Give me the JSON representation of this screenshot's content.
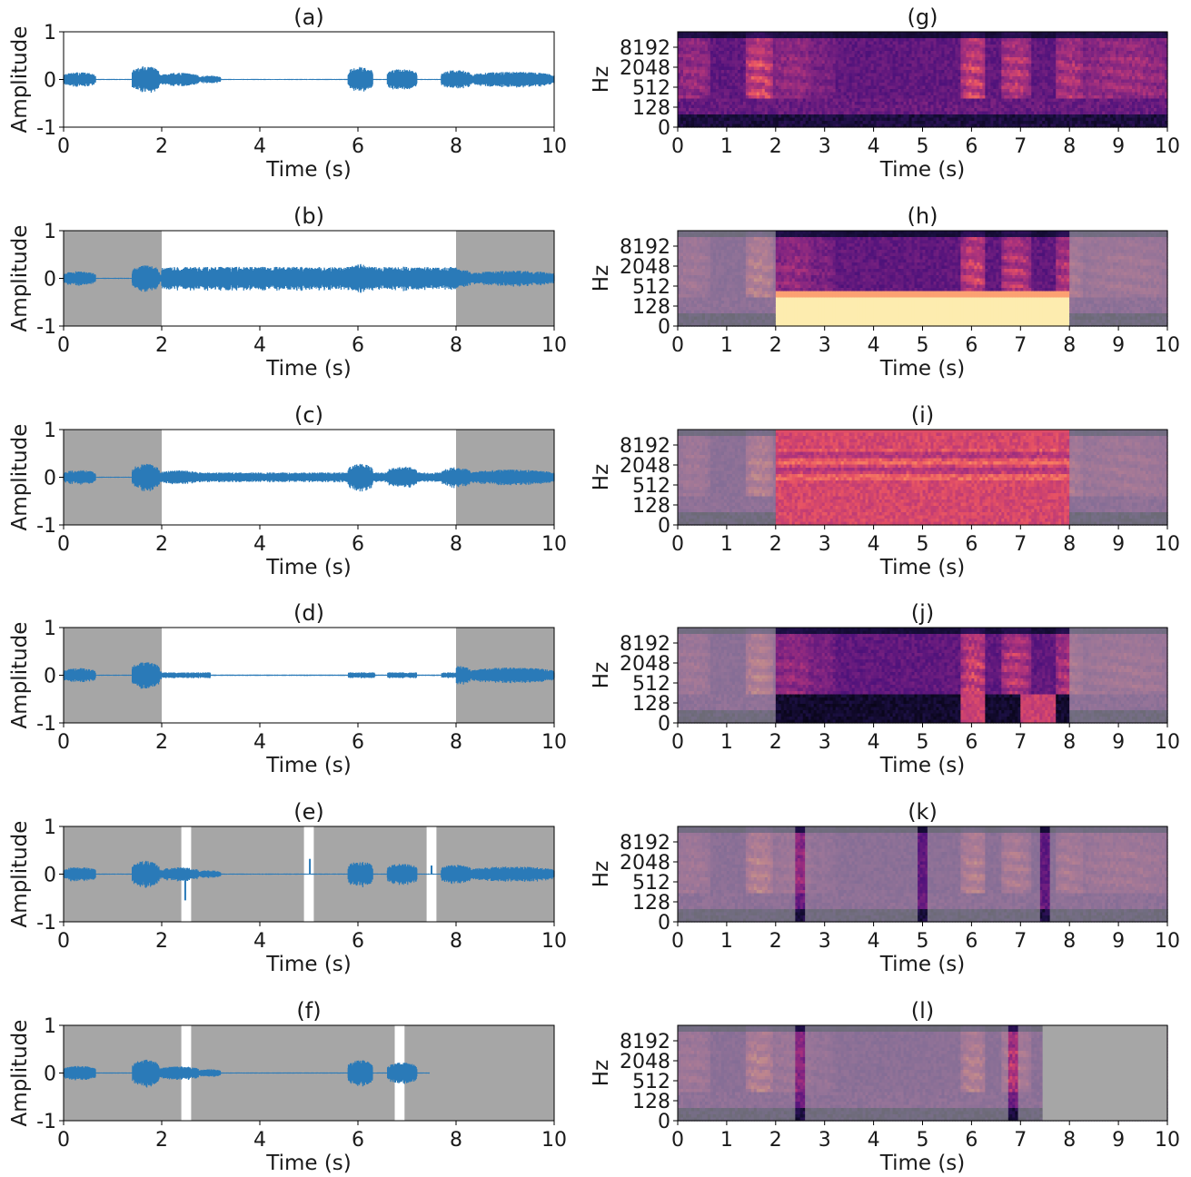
{
  "colors": {
    "waveform": "#2a7ab8",
    "masked_region": "#a6a6a6",
    "axis": "#000000",
    "spec_palette": "magma"
  },
  "chart_data": [
    {
      "panel": "a",
      "title": "(a)",
      "type": "line",
      "xlabel": "Time (s)",
      "ylabel": "Amplitude",
      "xlim": [
        0,
        10
      ],
      "ylim": [
        -1,
        1
      ],
      "xticks": [
        "0",
        "2",
        "4",
        "6",
        "8",
        "10"
      ],
      "yticks": [
        "-1",
        "0",
        "1"
      ],
      "shaded_regions": [],
      "signal": "original",
      "signal_end": 10
    },
    {
      "panel": "b",
      "title": "(b)",
      "type": "line",
      "xlabel": "Time (s)",
      "ylabel": "Amplitude",
      "xlim": [
        0,
        10
      ],
      "ylim": [
        -1,
        1
      ],
      "xticks": [
        "0",
        "2",
        "4",
        "6",
        "8",
        "10"
      ],
      "yticks": [
        "-1",
        "0",
        "1"
      ],
      "shaded_regions": [
        [
          0,
          2
        ],
        [
          8,
          10
        ]
      ],
      "signal": "loud_noise",
      "modified_interval": [
        2,
        8
      ],
      "signal_end": 10
    },
    {
      "panel": "c",
      "title": "(c)",
      "type": "line",
      "xlabel": "Time (s)",
      "ylabel": "Amplitude",
      "xlim": [
        0,
        10
      ],
      "ylim": [
        -1,
        1
      ],
      "xticks": [
        "0",
        "2",
        "4",
        "6",
        "8",
        "10"
      ],
      "yticks": [
        "-1",
        "0",
        "1"
      ],
      "shaded_regions": [
        [
          0,
          2
        ],
        [
          8,
          10
        ]
      ],
      "signal": "moderate_noise",
      "modified_interval": [
        2,
        8
      ],
      "signal_end": 10
    },
    {
      "panel": "d",
      "title": "(d)",
      "type": "line",
      "xlabel": "Time (s)",
      "ylabel": "Amplitude",
      "xlim": [
        0,
        10
      ],
      "ylim": [
        -1,
        1
      ],
      "xticks": [
        "0",
        "2",
        "4",
        "6",
        "8",
        "10"
      ],
      "yticks": [
        "-1",
        "0",
        "1"
      ],
      "shaded_regions": [
        [
          0,
          2
        ],
        [
          8,
          10
        ]
      ],
      "signal": "attenuated",
      "modified_interval": [
        2,
        8
      ],
      "signal_end": 10
    },
    {
      "panel": "e",
      "title": "(e)",
      "type": "line",
      "xlabel": "Time (s)",
      "ylabel": "Amplitude",
      "xlim": [
        0,
        10
      ],
      "ylim": [
        -1,
        1
      ],
      "xticks": [
        "0",
        "2",
        "4",
        "6",
        "8",
        "10"
      ],
      "yticks": [
        "-1",
        "0",
        "1"
      ],
      "shaded_regions": [
        [
          0,
          2.4
        ],
        [
          2.6,
          4.9
        ],
        [
          5.1,
          7.4
        ],
        [
          7.6,
          10
        ]
      ],
      "signal": "segments",
      "signal_end": 10
    },
    {
      "panel": "f",
      "title": "(f)",
      "type": "line",
      "xlabel": "Time (s)",
      "ylabel": "Amplitude",
      "xlim": [
        0,
        10
      ],
      "ylim": [
        -1,
        1
      ],
      "xticks": [
        "0",
        "2",
        "4",
        "6",
        "8",
        "10"
      ],
      "yticks": [
        "-1",
        "0",
        "1"
      ],
      "shaded_regions": [
        [
          0,
          2.4
        ],
        [
          2.6,
          6.75
        ],
        [
          6.95,
          10
        ]
      ],
      "signal": "truncated",
      "signal_end": 7.45
    },
    {
      "panel": "g",
      "title": "(g)",
      "type": "heatmap",
      "xlabel": "Time (s)",
      "ylabel": "Hz",
      "xlim": [
        0,
        10
      ],
      "xticks": [
        "0",
        "1",
        "2",
        "3",
        "4",
        "5",
        "6",
        "7",
        "8",
        "9",
        "10"
      ],
      "yticks": [
        "0",
        "128",
        "512",
        "2048",
        "8192"
      ],
      "dimmed_regions": [],
      "effect": "none"
    },
    {
      "panel": "h",
      "title": "(h)",
      "type": "heatmap",
      "xlabel": "Time (s)",
      "ylabel": "Hz",
      "xlim": [
        0,
        10
      ],
      "xticks": [
        "0",
        "1",
        "2",
        "3",
        "4",
        "5",
        "6",
        "7",
        "8",
        "9",
        "10"
      ],
      "yticks": [
        "0",
        "128",
        "512",
        "2048",
        "8192"
      ],
      "dimmed_regions": [
        [
          0,
          2
        ],
        [
          8,
          10
        ]
      ],
      "effect": "lowband_saturated",
      "effect_interval": [
        2,
        8
      ]
    },
    {
      "panel": "i",
      "title": "(i)",
      "type": "heatmap",
      "xlabel": "Time (s)",
      "ylabel": "Hz",
      "xlim": [
        0,
        10
      ],
      "xticks": [
        "0",
        "1",
        "2",
        "3",
        "4",
        "5",
        "6",
        "7",
        "8",
        "9",
        "10"
      ],
      "yticks": [
        "0",
        "128",
        "512",
        "2048",
        "8192"
      ],
      "dimmed_regions": [
        [
          0,
          2
        ],
        [
          8,
          10
        ]
      ],
      "effect": "broadband_noise",
      "effect_interval": [
        2,
        8
      ]
    },
    {
      "panel": "j",
      "title": "(j)",
      "type": "heatmap",
      "xlabel": "Time (s)",
      "ylabel": "Hz",
      "xlim": [
        0,
        10
      ],
      "xticks": [
        "0",
        "1",
        "2",
        "3",
        "4",
        "5",
        "6",
        "7",
        "8",
        "9",
        "10"
      ],
      "yticks": [
        "0",
        "128",
        "512",
        "2048",
        "8192"
      ],
      "dimmed_regions": [
        [
          0,
          2
        ],
        [
          8,
          10
        ]
      ],
      "effect": "lowband_removed",
      "effect_interval": [
        2,
        8
      ]
    },
    {
      "panel": "k",
      "title": "(k)",
      "type": "heatmap",
      "xlabel": "Time (s)",
      "ylabel": "Hz",
      "xlim": [
        0,
        10
      ],
      "xticks": [
        "0",
        "1",
        "2",
        "3",
        "4",
        "5",
        "6",
        "7",
        "8",
        "9",
        "10"
      ],
      "yticks": [
        "0",
        "128",
        "512",
        "2048",
        "8192"
      ],
      "dimmed_regions": [
        [
          0,
          2.4
        ],
        [
          2.6,
          4.9
        ],
        [
          5.1,
          7.4
        ],
        [
          7.6,
          10
        ]
      ],
      "effect": "none"
    },
    {
      "panel": "l",
      "title": "(l)",
      "type": "heatmap",
      "xlabel": "Time (s)",
      "ylabel": "Hz",
      "xlim": [
        0,
        10
      ],
      "xticks": [
        "0",
        "1",
        "2",
        "3",
        "4",
        "5",
        "6",
        "7",
        "8",
        "9",
        "10"
      ],
      "yticks": [
        "0",
        "128",
        "512",
        "2048",
        "8192"
      ],
      "dimmed_regions": [
        [
          0,
          2.4
        ],
        [
          2.6,
          6.75
        ],
        [
          6.95,
          7.45
        ]
      ],
      "empty_regions": [
        [
          7.45,
          10
        ]
      ],
      "effect": "none"
    }
  ]
}
